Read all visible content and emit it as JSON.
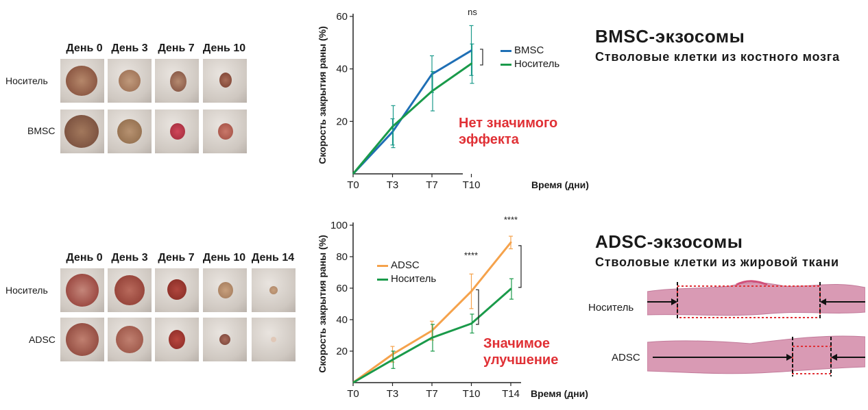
{
  "colors": {
    "bmsc": "#1f6fb5",
    "adsc": "#f5a24b",
    "vehicle": "#1a9a4a",
    "highlight": "#e03035",
    "errorbar_bmsc": "#1a9a8a"
  },
  "top": {
    "title": "BMSC-экзосомы",
    "subtitle": "Стволовые клетки из костного мозга",
    "photo_days": [
      "День 0",
      "День 3",
      "День 7",
      "День 10"
    ],
    "photo_rows": [
      "Носитель",
      "BMSC"
    ],
    "effect_line1": "Нет значимого",
    "effect_line2": "эффекта",
    "significance": "ns"
  },
  "bottom": {
    "title": "ADSC-экзосомы",
    "subtitle": "Стволовые клетки из жировой ткани",
    "photo_days": [
      "День 0",
      "День 3",
      "День 7",
      "День 10",
      "День 14"
    ],
    "photo_rows": [
      "Носитель",
      "ADSC"
    ],
    "effect_line1": "Значимое",
    "effect_line2": "улучшение",
    "significance_t10": "****",
    "significance_t14": "****",
    "histology_rows": [
      "Носитель",
      "ADSC"
    ]
  },
  "chart_data": [
    {
      "type": "line",
      "x": [
        "T0",
        "T3",
        "T7",
        "T10"
      ],
      "xlabel": "Время (дни)",
      "ylabel": "Скорость закрытия раны (%)",
      "ylim": [
        0,
        60
      ],
      "yticks": [
        20,
        40,
        60
      ],
      "series": [
        {
          "name": "BMSC",
          "values": [
            0,
            16,
            38,
            47
          ],
          "err": [
            0,
            5,
            7,
            9.5
          ]
        },
        {
          "name": "Носитель",
          "values": [
            0,
            18,
            31.5,
            42
          ],
          "err": [
            0,
            8,
            7.5,
            7.5
          ]
        }
      ],
      "annotations": [
        "ns",
        "Нет значимого эффекта"
      ]
    },
    {
      "type": "line",
      "x": [
        "T0",
        "T3",
        "T7",
        "T10",
        "T14"
      ],
      "xlabel": "Время (дни)",
      "ylabel": "Скорость закрытия раны (%)",
      "ylim": [
        0,
        100
      ],
      "yticks": [
        20,
        40,
        60,
        80,
        100
      ],
      "series": [
        {
          "name": "ADSC",
          "values": [
            0,
            18,
            33,
            58,
            89
          ],
          "err": [
            0,
            5,
            6,
            11,
            4
          ]
        },
        {
          "name": "Носитель",
          "values": [
            0,
            14.5,
            28.5,
            37.5,
            59.5
          ],
          "err": [
            0,
            5.5,
            8.5,
            6,
            6.5
          ]
        }
      ],
      "annotations": [
        "****",
        "****",
        "Значимое улучшение"
      ]
    }
  ]
}
